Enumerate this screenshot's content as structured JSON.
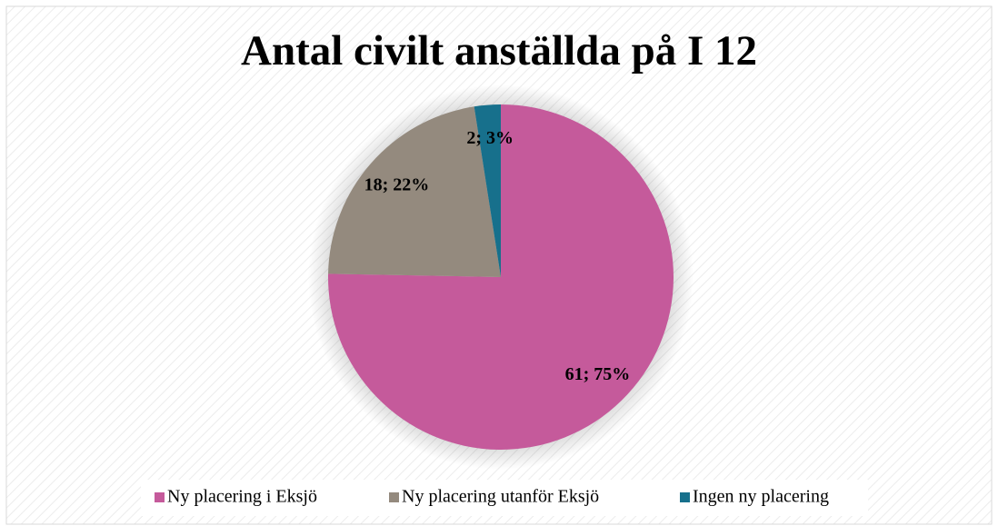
{
  "chart_data": {
    "type": "pie",
    "title": "Antal civilt anställda på I 12",
    "categories": [
      "Ny placering i Eksjö",
      "Ny placering utanför Eksjö",
      "Ingen ny placering"
    ],
    "values": [
      61,
      18,
      2
    ],
    "value_labels": [
      "61; 75%",
      "18; 22%",
      "2; 3%"
    ],
    "colors": [
      "#c55a9b",
      "#948a7e",
      "#17708c"
    ],
    "legend": "bottom"
  }
}
